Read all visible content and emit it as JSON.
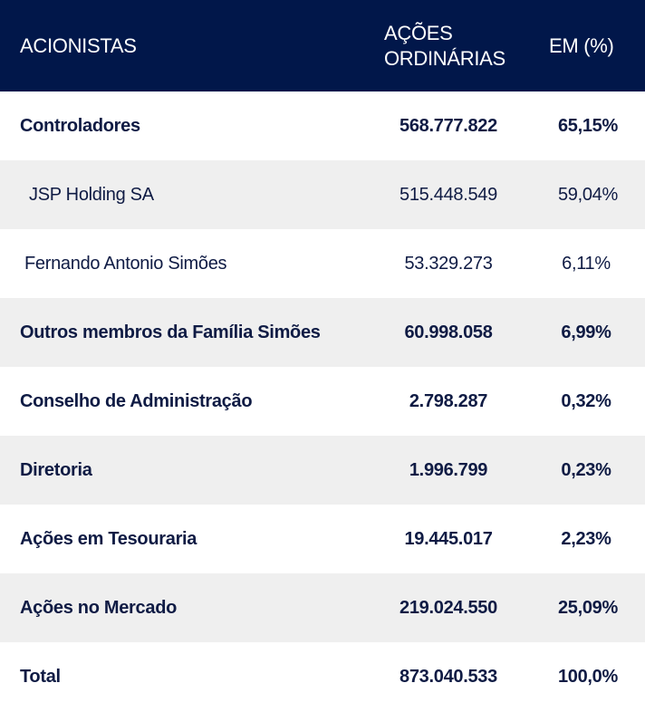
{
  "table": {
    "headers": {
      "acionistas": "ACIONISTAS",
      "acoes_line1": "AÇÕES",
      "acoes_line2": "ORDINÁRIAS",
      "percent": "EM (%)"
    },
    "rows": [
      {
        "name": "Controladores",
        "shares": "568.777.822",
        "percent": "65,15%",
        "bold": true
      },
      {
        "name": "JSP Holding SA",
        "shares": "515.448.549",
        "percent": "59,04%",
        "bold": false
      },
      {
        "name": "Fernando Antonio Simões",
        "shares": "53.329.273",
        "percent": "6,11%",
        "bold": false
      },
      {
        "name": "Outros membros da Família Simões",
        "shares": "60.998.058",
        "percent": "6,99%",
        "bold": true
      },
      {
        "name": "Conselho de Administração",
        "shares": "2.798.287",
        "percent": "0,32%",
        "bold": true
      },
      {
        "name": "Diretoria",
        "shares": "1.996.799",
        "percent": "0,23%",
        "bold": true
      },
      {
        "name": "Ações em Tesouraria",
        "shares": "19.445.017",
        "percent": "2,23%",
        "bold": true
      },
      {
        "name": "Ações no Mercado",
        "shares": "219.024.550",
        "percent": "25,09%",
        "bold": true
      },
      {
        "name": "Total",
        "shares": "873.040.533",
        "percent": "100,0%",
        "bold": true
      }
    ]
  },
  "colors": {
    "header_bg": "#01174a",
    "header_text": "#ffffff",
    "body_text": "#0f1b44",
    "alt_row_bg": "#efefef"
  }
}
